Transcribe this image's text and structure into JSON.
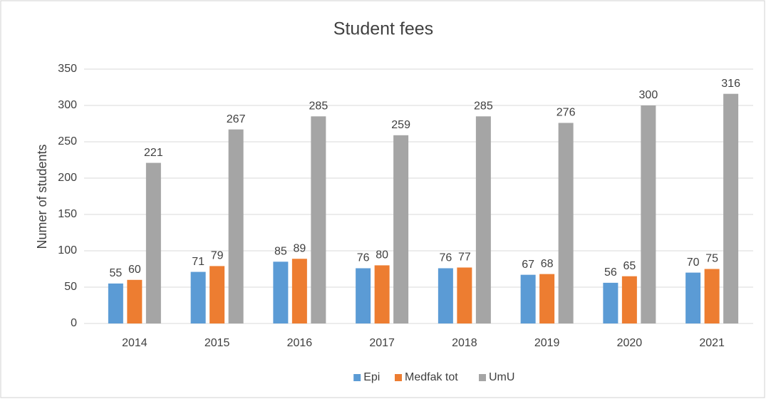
{
  "chart_data": {
    "type": "bar",
    "title": "Student fees",
    "y_label": "Numer of students",
    "categories": [
      "2014",
      "2015",
      "2016",
      "2017",
      "2018",
      "2019",
      "2020",
      "2021"
    ],
    "series": [
      {
        "name": "Epi",
        "color": "#5b9bd5",
        "values": [
          55,
          71,
          85,
          76,
          76,
          67,
          56,
          70
        ]
      },
      {
        "name": "Medfak tot",
        "color": "#ed7d31",
        "values": [
          60,
          79,
          89,
          80,
          77,
          68,
          65,
          75
        ]
      },
      {
        "name": "UmU",
        "color": "#a5a5a5",
        "values": [
          221,
          267,
          285,
          259,
          285,
          276,
          300,
          316
        ]
      }
    ],
    "ylim": [
      0,
      350
    ],
    "yticks": [
      0,
      50,
      100,
      150,
      200,
      250,
      300,
      350
    ],
    "grid": true,
    "legend": "bottom"
  }
}
